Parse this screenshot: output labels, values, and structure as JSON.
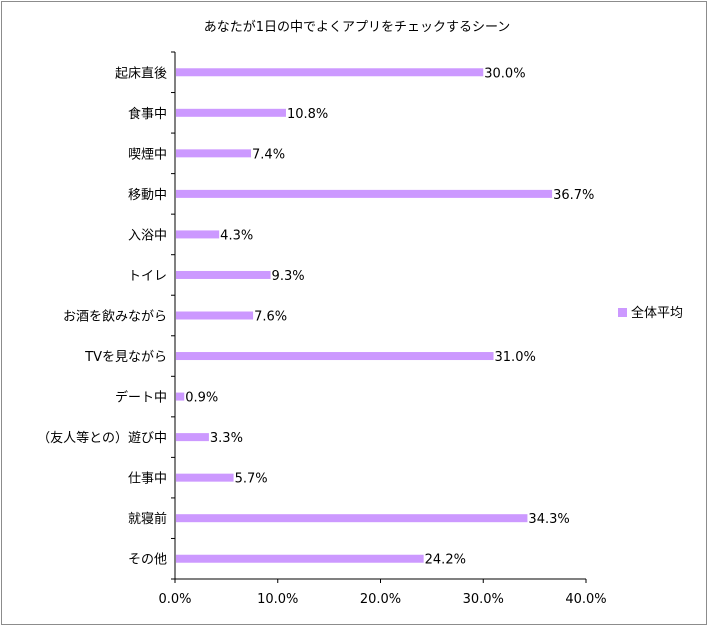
{
  "chart_data": {
    "type": "bar",
    "orientation": "horizontal",
    "title": "あなたが1日の中でよくアプリをチェックするシーン",
    "categories": [
      "起床直後",
      "食事中",
      "喫煙中",
      "移動中",
      "入浴中",
      "トイレ",
      "お酒を飲みながら",
      "TVを見ながら",
      "デート中",
      "（友人等との）遊び中",
      "仕事中",
      "就寝前",
      "その他"
    ],
    "series": [
      {
        "name": "全体平均",
        "values": [
          30.0,
          10.8,
          7.4,
          36.7,
          4.3,
          9.3,
          7.6,
          31.0,
          0.9,
          3.3,
          5.7,
          34.3,
          24.2
        ],
        "labels": [
          "30.0%",
          "10.8%",
          "7.4%",
          "36.7%",
          "4.3%",
          "9.3%",
          "7.6%",
          "31.0%",
          "0.9%",
          "3.3%",
          "5.7%",
          "34.3%",
          "24.2%"
        ],
        "color": "#cc99ff"
      }
    ],
    "xlim": [
      0,
      40
    ],
    "x_ticks": [
      0,
      10,
      20,
      30,
      40
    ],
    "x_tick_labels": [
      "0.0%",
      "10.0%",
      "20.0%",
      "30.0%",
      "40.0%"
    ],
    "xlabel": "",
    "ylabel": "",
    "grid": false,
    "legend": "right"
  }
}
